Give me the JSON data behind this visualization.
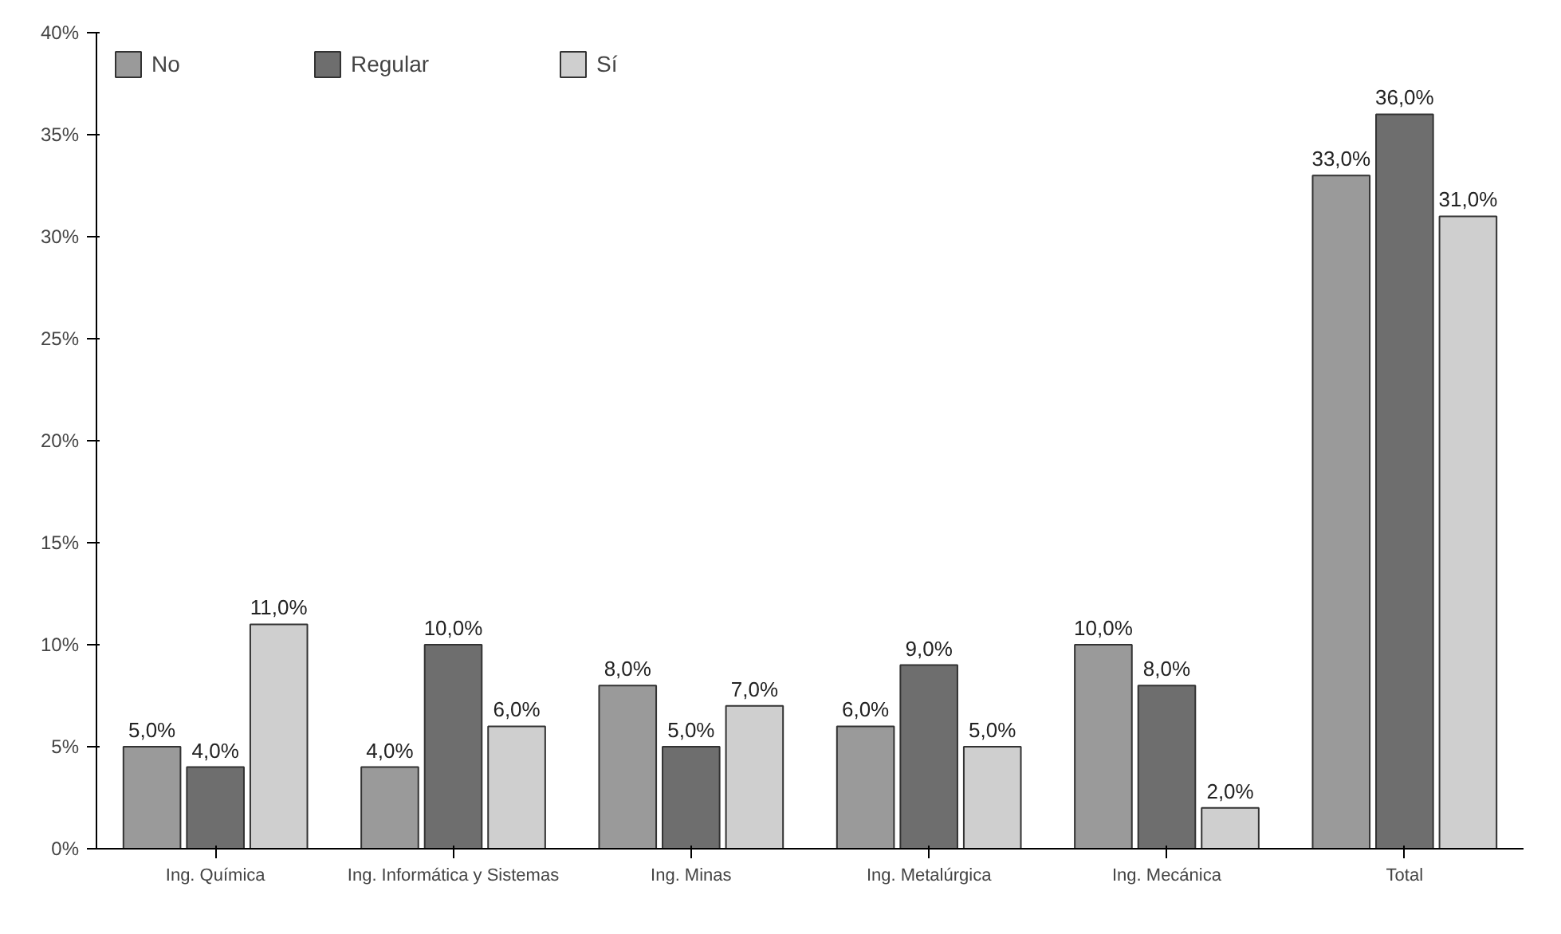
{
  "chart_data": {
    "type": "bar",
    "categories": [
      "Ing. Química",
      "Ing. Informática y Sistemas",
      "Ing. Minas",
      "Ing. Metalúrgica",
      "Ing. Mecánica",
      "Total"
    ],
    "series": [
      {
        "name": "No",
        "color": "#9a9a9a",
        "values": [
          5,
          4,
          8,
          6,
          10,
          33
        ],
        "value_labels": [
          "5,0%",
          "4,0%",
          "8,0%",
          "6,0%",
          "10,0%",
          "33,0%"
        ]
      },
      {
        "name": "Regular",
        "color": "#6e6e6e",
        "values": [
          4,
          10,
          5,
          9,
          8,
          36
        ],
        "value_labels": [
          "4,0%",
          "10,0%",
          "5,0%",
          "9,0%",
          "8,0%",
          "36,0%"
        ]
      },
      {
        "name": "Sí",
        "color": "#cfcfcf",
        "values": [
          11,
          6,
          7,
          5,
          2,
          31
        ],
        "value_labels": [
          "11,0%",
          "6,0%",
          "7,0%",
          "5,0%",
          "2,0%",
          "31,0%"
        ]
      }
    ],
    "ylim": [
      0,
      40
    ],
    "yticks": [
      {
        "value": 0,
        "label": "0%"
      },
      {
        "value": 5,
        "label": "5%"
      },
      {
        "value": 10,
        "label": "10%"
      },
      {
        "value": 15,
        "label": "15%"
      },
      {
        "value": 20,
        "label": "20%"
      },
      {
        "value": 25,
        "label": "25%"
      },
      {
        "value": 30,
        "label": "30%"
      },
      {
        "value": 35,
        "label": "35%"
      },
      {
        "value": 40,
        "label": "40%"
      }
    ],
    "grid": false,
    "legend": "top"
  }
}
